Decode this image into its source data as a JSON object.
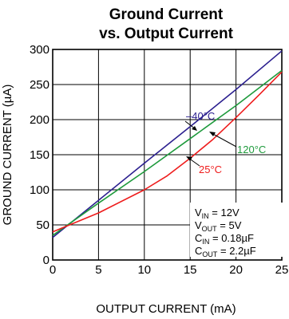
{
  "chart_data": {
    "type": "line",
    "title_lines": [
      "Ground Current",
      "vs. Output Current"
    ],
    "xlabel": "OUTPUT CURRENT (mA)",
    "ylabel": "GROUND CURRENT (µA)",
    "xlim": [
      0,
      25
    ],
    "ylim": [
      0,
      300
    ],
    "xticks": [
      0,
      5,
      10,
      15,
      20,
      25
    ],
    "yticks": [
      0,
      50,
      100,
      150,
      200,
      250,
      300
    ],
    "grid": true,
    "series": [
      {
        "name": "–40°C",
        "color": "#2b1f8f",
        "x": [
          0,
          5,
          10,
          15,
          20,
          25
        ],
        "y": [
          32,
          85,
          138,
          190,
          243,
          298
        ]
      },
      {
        "name": "120°C",
        "color": "#1e9a3c",
        "x": [
          0,
          5,
          10,
          15,
          20,
          25
        ],
        "y": [
          35,
          81,
          126,
          173,
          220,
          270
        ]
      },
      {
        "name": "25°C",
        "color": "#ee1c1c",
        "x": [
          0,
          5,
          10,
          12.5,
          15,
          17.5,
          20,
          22.5,
          25
        ],
        "y": [
          40,
          67,
          100,
          120,
          145,
          172,
          203,
          235,
          268
        ]
      }
    ],
    "conditions": [
      {
        "main": "V",
        "sub": "IN",
        "rest": " = 12V"
      },
      {
        "main": "V",
        "sub": "OUT",
        "rest": " = 5V"
      },
      {
        "main": "C",
        "sub": "IN",
        "rest": " = 0.18µF"
      },
      {
        "main": "C",
        "sub": "OUT",
        "rest": " = 2.2µF"
      }
    ]
  }
}
